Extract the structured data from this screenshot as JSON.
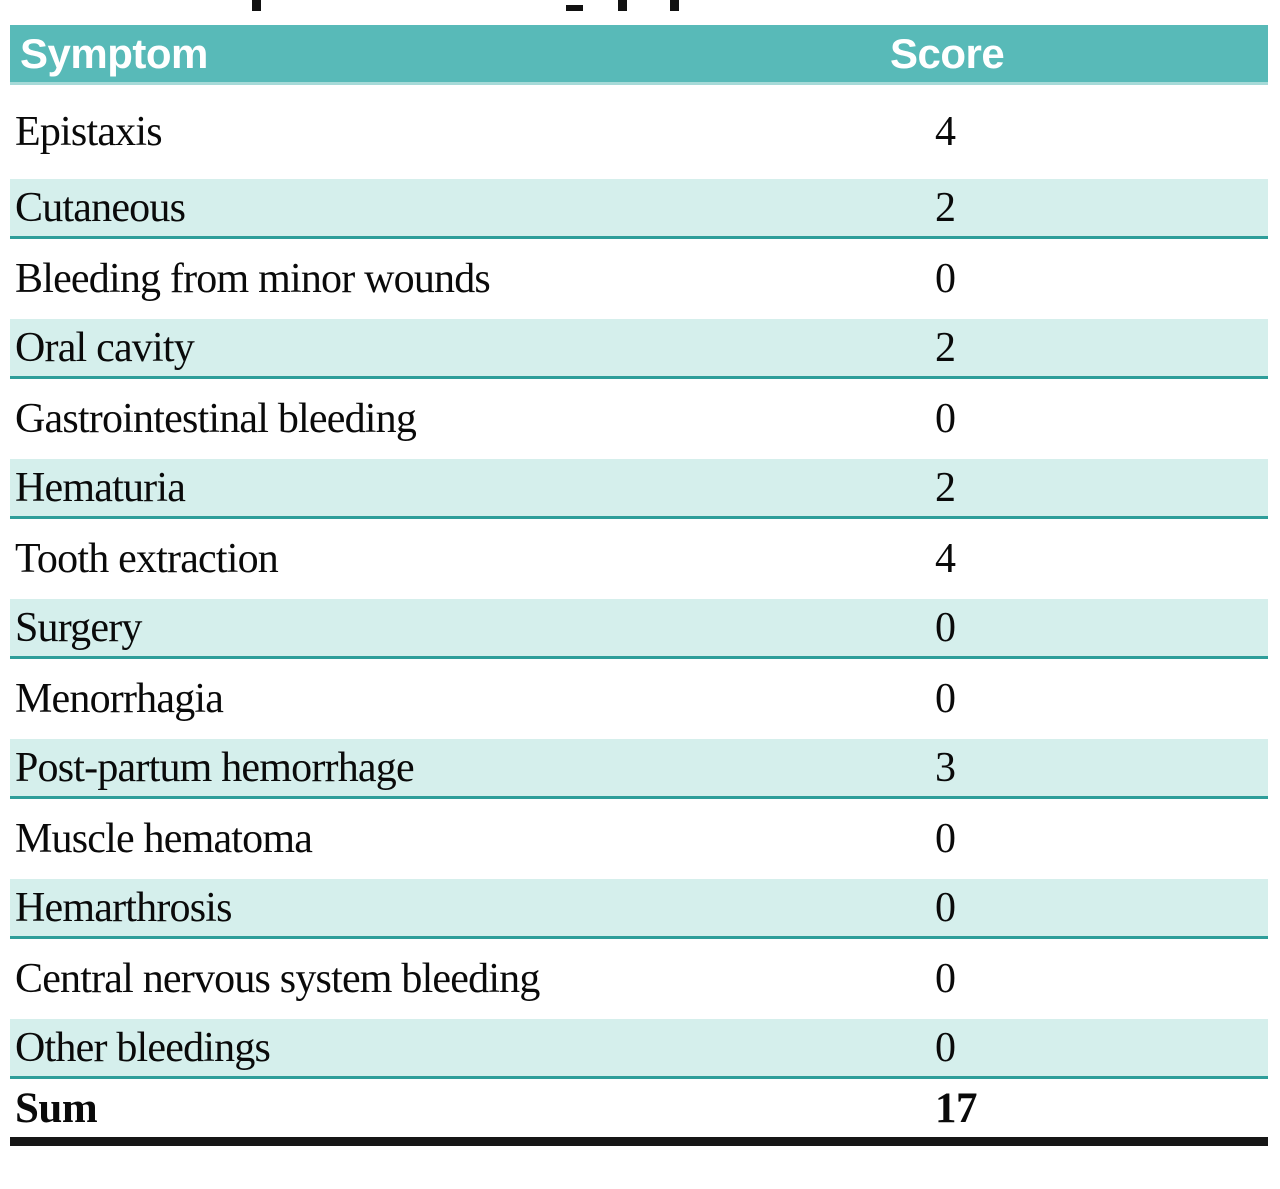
{
  "colors": {
    "header_bg": "#58bab8",
    "header_text": "#ffffff",
    "shaded_row_bg": "#d5efec",
    "shaded_row_border": "#2e9e9a",
    "body_text": "#0a0a0a",
    "sum_rule": "#161616"
  },
  "table": {
    "columns": [
      "Symptom",
      "Score"
    ],
    "rows": [
      {
        "symptom": "Epistaxis",
        "score": "4"
      },
      {
        "symptom": "Cutaneous",
        "score": "2"
      },
      {
        "symptom": "Bleeding from minor wounds",
        "score": "0"
      },
      {
        "symptom": "Oral cavity",
        "score": "2"
      },
      {
        "symptom": "Gastrointestinal bleeding",
        "score": "0"
      },
      {
        "symptom": "Hematuria",
        "score": "2"
      },
      {
        "symptom": "Tooth extraction",
        "score": "4"
      },
      {
        "symptom": "Surgery",
        "score": "0"
      },
      {
        "symptom": "Menorrhagia",
        "score": "0"
      },
      {
        "symptom": "Post-partum hemorrhage",
        "score": "3"
      },
      {
        "symptom": "Muscle hematoma",
        "score": "0"
      },
      {
        "symptom": "Hemarthrosis",
        "score": "0"
      },
      {
        "symptom": "Central nervous system bleeding",
        "score": "0"
      },
      {
        "symptom": "Other bleedings",
        "score": "0"
      }
    ],
    "footer": {
      "label": "Sum",
      "score": "17"
    }
  }
}
